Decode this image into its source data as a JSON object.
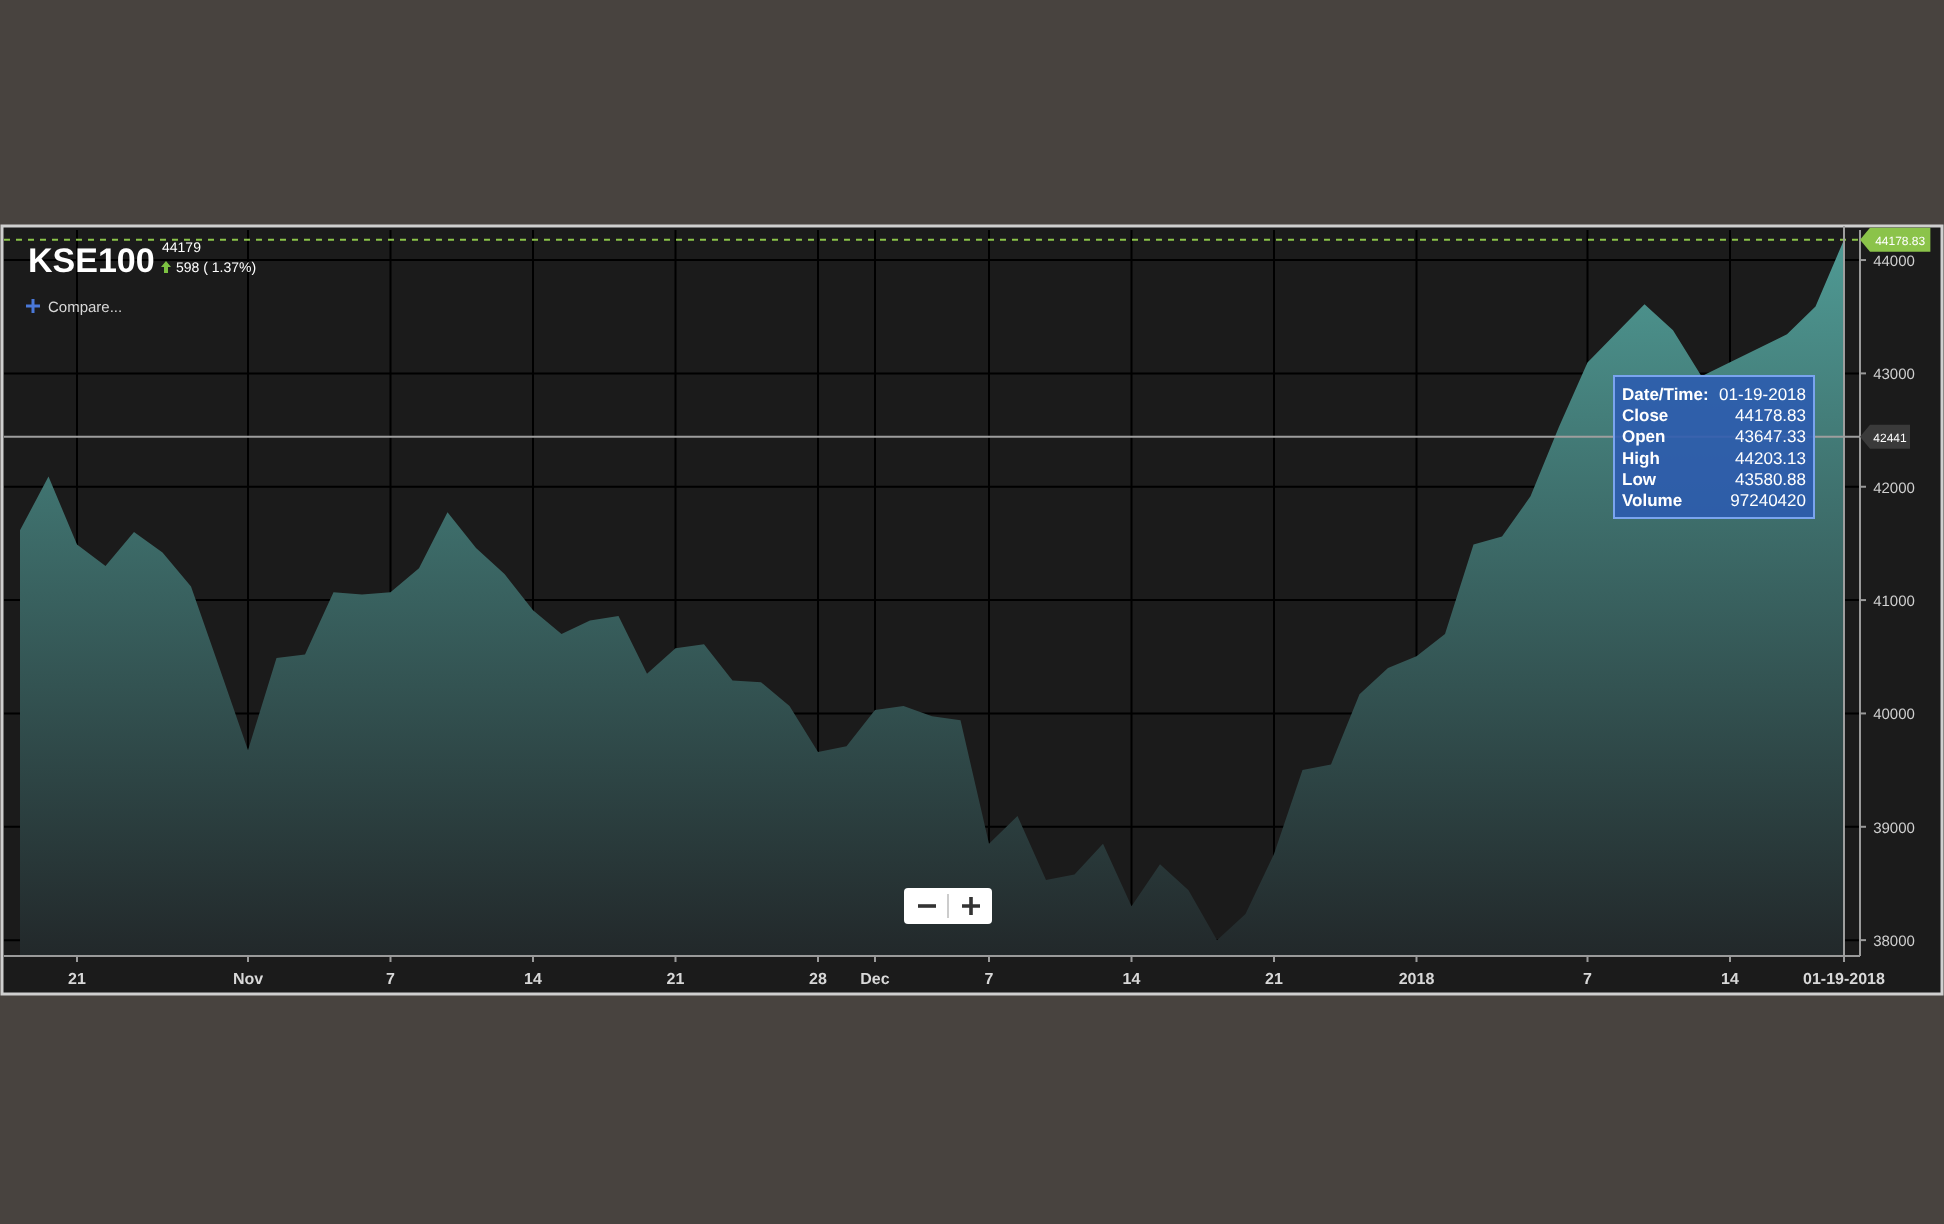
{
  "chart_data": {
    "type": "area",
    "title": "KSE100",
    "categories": [
      null,
      null,
      "21",
      null,
      null,
      null,
      null,
      null,
      "Nov",
      null,
      null,
      null,
      null,
      "7",
      null,
      null,
      null,
      null,
      "14",
      null,
      null,
      null,
      null,
      "21",
      null,
      null,
      null,
      null,
      "28",
      null,
      "Dec",
      null,
      null,
      null,
      "7",
      null,
      null,
      null,
      null,
      "14",
      null,
      null,
      null,
      null,
      "21",
      null,
      null,
      null,
      null,
      "2018",
      null,
      null,
      null,
      null,
      null,
      "7",
      null,
      null,
      null,
      null,
      "14",
      null,
      null,
      null,
      "01-19-2018"
    ],
    "series": [
      {
        "color": "#4f9a94",
        "values": [
          41615,
          42090,
          41490,
          41300,
          41600,
          41420,
          41120,
          40400,
          39675,
          40490,
          40520,
          41070,
          41050,
          41070,
          41280,
          41775,
          41460,
          41230,
          40910,
          40700,
          40820,
          40860,
          40350,
          40575,
          40610,
          40290,
          40275,
          40065,
          39660,
          39710,
          40030,
          40065,
          39975,
          39940,
          38850,
          39095,
          38530,
          38580,
          38850,
          38300,
          38670,
          38440,
          38000,
          38230,
          38760,
          39500,
          39550,
          40170,
          40400,
          40505,
          40700,
          41490,
          41560,
          41915,
          42530,
          43095,
          null,
          43610,
          43380,
          42975,
          null,
          null,
          43345,
          43590,
          44178.83
        ]
      }
    ],
    "ylim": [
      37860,
      44265
    ],
    "yticks": [
      38000,
      39000,
      40000,
      41000,
      42000,
      43000,
      44000
    ],
    "grid": true,
    "ref_lines": [
      {
        "axis": "y",
        "value": 44178.83,
        "label": "44178.83",
        "color": "#8bc34a",
        "line_style": "dashed"
      },
      {
        "axis": "y",
        "value": 42441,
        "label": "42441",
        "color": "#9e9e9e",
        "line_style": "solid"
      },
      {
        "axis": "x",
        "value": "01-19-2018",
        "color": "#9e9e9e",
        "line_style": "solid"
      }
    ],
    "annotations": [
      "44179",
      "598 ( 1.37%)",
      "Compare...",
      "Date/Time: 01-19-2018",
      "Close 44178.83",
      "Open 43647.33",
      "High 44203.13",
      "Low 43580.88",
      "Volume 97240420"
    ]
  }
}
